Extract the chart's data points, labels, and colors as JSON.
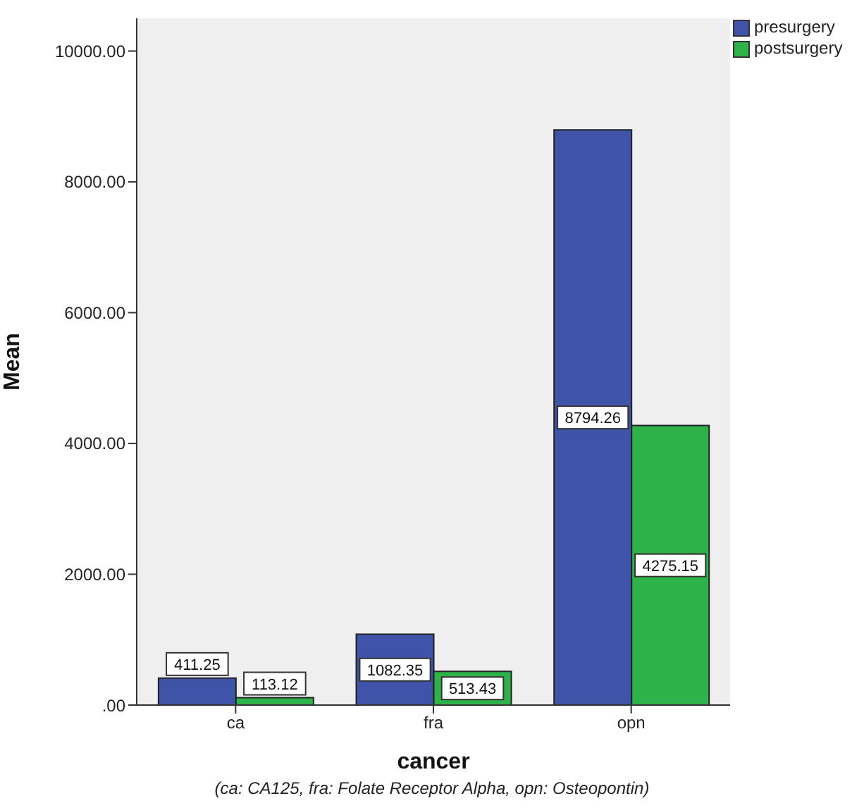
{
  "chart_data": {
    "type": "bar",
    "xlabel": "cancer",
    "ylabel": "Mean",
    "categories": [
      "ca",
      "fra",
      "opn"
    ],
    "series": [
      {
        "name": "presurgery",
        "color": "#3f54a8",
        "values": [
          411.25,
          1082.35,
          8794.26
        ]
      },
      {
        "name": "postsurgery",
        "color": "#2db34a",
        "values": [
          113.12,
          513.43,
          4275.15
        ]
      }
    ],
    "ylim": [
      0,
      10500
    ],
    "yticks": [
      {
        "value": 0,
        "label": ".00"
      },
      {
        "value": 2000,
        "label": "2000.00"
      },
      {
        "value": 4000,
        "label": "4000.00"
      },
      {
        "value": 6000,
        "label": "6000.00"
      },
      {
        "value": 8000,
        "label": "8000.00"
      },
      {
        "value": 10000,
        "label": "10000.00"
      }
    ],
    "data_labels": true,
    "legend": "top right",
    "annotations": [
      "(ca: CA125, fra: Folate Receptor Alpha, opn: Osteopontin)"
    ]
  }
}
